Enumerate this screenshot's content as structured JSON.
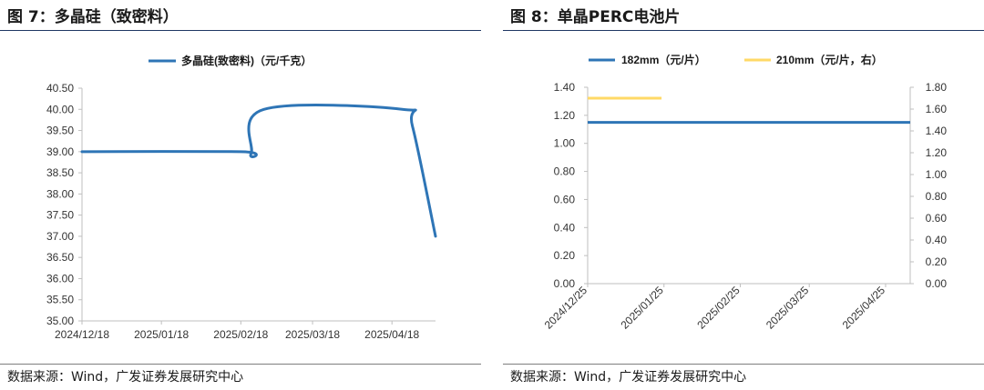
{
  "figures": [
    {
      "title": "图 7：多晶硅（致密料）",
      "source": "数据来源：Wind，广发证券发展研究中心"
    },
    {
      "title": "图 8：单晶PERC电池片",
      "source": "数据来源：Wind，广发证券发展研究中心"
    }
  ],
  "chart_data": [
    {
      "type": "line",
      "legend": [
        "多晶硅(致密料)（元/千克）"
      ],
      "legend_position": "top",
      "x_ticks": [
        "2024/12/18",
        "2025/01/18",
        "2025/02/18",
        "2025/03/18",
        "2025/04/18"
      ],
      "y_ticks": [
        "35.00",
        "35.50",
        "36.00",
        "36.50",
        "37.00",
        "37.50",
        "38.00",
        "38.50",
        "39.00",
        "39.50",
        "40.00",
        "40.50"
      ],
      "ylim": [
        35,
        40.5
      ],
      "x_range": [
        "2024-12-18",
        "2025-05-05"
      ],
      "series": [
        {
          "name": "多晶硅(致密料)（元/千克）",
          "color": "#2e75b6",
          "points": [
            [
              "2024-12-18",
              39.0
            ],
            [
              "2025-02-18",
              39.0
            ],
            [
              "2025-02-22",
              38.95
            ],
            [
              "2025-02-27",
              40.0
            ],
            [
              "2025-04-22",
              40.0
            ],
            [
              "2025-04-26",
              39.6
            ],
            [
              "2025-05-05",
              37.0
            ]
          ]
        }
      ],
      "grid": false
    },
    {
      "type": "line",
      "legend": [
        "182mm（元/片）",
        "210mm（元/片，右）"
      ],
      "legend_position": "top",
      "x_ticks": [
        "2024/12/25",
        "2025/01/25",
        "2025/02/25",
        "2025/03/25",
        "2025/04/25"
      ],
      "y_ticks": [
        "0.00",
        "0.20",
        "0.40",
        "0.60",
        "0.80",
        "1.00",
        "1.20",
        "1.40"
      ],
      "y2_ticks": [
        "0.00",
        "0.20",
        "0.40",
        "0.60",
        "0.80",
        "1.00",
        "1.20",
        "1.40",
        "1.60",
        "1.80"
      ],
      "ylim": [
        0,
        1.4
      ],
      "y2lim": [
        0,
        1.8
      ],
      "x_range": [
        "2024-12-25",
        "2025-05-05"
      ],
      "series": [
        {
          "name": "182mm（元/片）",
          "axis": "left",
          "color": "#2e75b6",
          "points": [
            [
              "2024-12-25",
              1.15
            ],
            [
              "2025-05-05",
              1.15
            ]
          ]
        },
        {
          "name": "210mm（元/片，右）",
          "axis": "right",
          "color": "#ffd966",
          "points": [
            [
              "2024-12-25",
              1.7
            ],
            [
              "2025-01-24",
              1.7
            ]
          ]
        }
      ],
      "grid": false
    }
  ]
}
